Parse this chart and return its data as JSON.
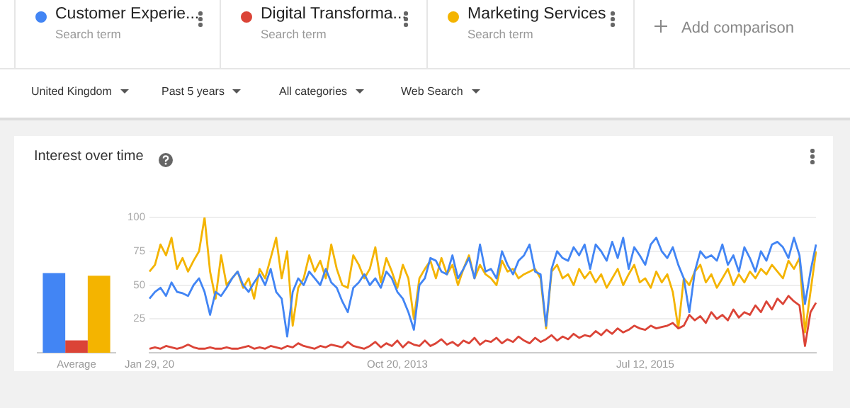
{
  "chart_data": [
    {
      "type": "bar",
      "title": "Interest over time",
      "categories": [
        "Average"
      ],
      "ylim": [
        0,
        100
      ],
      "tick_labels": "x",
      "series": [
        {
          "color": "#4285f4",
          "values": [
            58
          ]
        },
        {
          "color": "#db4437",
          "values": [
            9
          ]
        },
        {
          "color": "#f4b400",
          "values": [
            56
          ]
        }
      ]
    },
    {
      "type": "line",
      "legend": "top",
      "grid": "y",
      "categories": [
        "Jan 29, 20",
        null,
        null,
        null,
        null,
        null,
        null,
        null,
        null,
        null,
        null,
        null,
        null,
        null,
        null,
        null,
        null,
        null,
        null,
        null,
        null,
        null,
        null,
        null,
        null,
        null,
        null,
        null,
        null,
        null,
        null,
        null,
        null,
        null,
        null,
        null,
        null,
        null,
        null,
        null,
        null,
        null,
        null,
        null,
        null,
        "Oct 20, 2013",
        null,
        null,
        null,
        null,
        null,
        null,
        null,
        null,
        null,
        null,
        null,
        null,
        null,
        null,
        null,
        null,
        null,
        null,
        null,
        null,
        null,
        null,
        null,
        null,
        null,
        null,
        null,
        null,
        null,
        null,
        null,
        null,
        null,
        null,
        null,
        null,
        null,
        null,
        null,
        null,
        null,
        null,
        null,
        null,
        "Jul 12, 2015",
        null,
        null,
        null,
        null,
        null,
        null,
        null,
        null,
        null,
        null,
        null,
        null,
        null,
        null,
        null,
        null,
        null,
        null,
        null,
        null,
        null,
        null,
        null,
        null,
        null,
        null,
        null,
        null,
        null,
        null,
        null
      ],
      "ylim": [
        0,
        100
      ],
      "yticks": [
        25,
        50,
        75,
        100
      ],
      "series": [
        {
          "name": "Customer Experie...",
          "color": "#4285f4",
          "values": [
            40,
            45,
            48,
            42,
            52,
            45,
            44,
            42,
            50,
            55,
            45,
            28,
            45,
            42,
            48,
            55,
            60,
            50,
            45,
            52,
            58,
            50,
            62,
            45,
            40,
            12,
            45,
            55,
            50,
            60,
            55,
            50,
            62,
            52,
            48,
            38,
            30,
            48,
            52,
            58,
            50,
            55,
            48,
            60,
            55,
            45,
            40,
            30,
            17,
            50,
            55,
            70,
            68,
            60,
            58,
            72,
            55,
            62,
            70,
            55,
            80,
            60,
            62,
            55,
            75,
            65,
            58,
            68,
            72,
            80,
            60,
            58,
            20,
            62,
            75,
            70,
            68,
            78,
            72,
            80,
            62,
            80,
            75,
            68,
            82,
            70,
            85,
            62,
            78,
            72,
            65,
            80,
            85,
            75,
            70,
            78,
            65,
            55,
            30,
            60,
            75,
            70,
            72,
            68,
            80,
            65,
            72,
            60,
            78,
            70,
            60,
            75,
            68,
            80,
            82,
            78,
            70,
            85,
            72,
            36,
            60,
            80
          ]
        },
        {
          "name": "Digital Transforma...",
          "color": "#db4437",
          "values": [
            3,
            4,
            3,
            5,
            4,
            3,
            4,
            6,
            4,
            3,
            3,
            4,
            3,
            3,
            4,
            3,
            3,
            4,
            5,
            3,
            4,
            3,
            5,
            4,
            3,
            5,
            4,
            7,
            5,
            4,
            3,
            5,
            4,
            6,
            5,
            4,
            8,
            5,
            4,
            3,
            5,
            8,
            4,
            7,
            5,
            9,
            4,
            8,
            6,
            5,
            9,
            5,
            7,
            10,
            6,
            8,
            5,
            9,
            7,
            11,
            6,
            9,
            8,
            11,
            7,
            10,
            8,
            12,
            9,
            7,
            11,
            8,
            10,
            13,
            9,
            12,
            10,
            14,
            11,
            13,
            12,
            16,
            13,
            17,
            14,
            18,
            15,
            17,
            20,
            18,
            17,
            20,
            18,
            19,
            20,
            22,
            18,
            20,
            28,
            24,
            27,
            22,
            30,
            25,
            28,
            24,
            32,
            26,
            30,
            28,
            35,
            30,
            38,
            32,
            40,
            36,
            42,
            38,
            35,
            5,
            30,
            37
          ]
        },
        {
          "name": "Marketing Services",
          "color": "#f4b400",
          "values": [
            60,
            65,
            80,
            72,
            85,
            62,
            70,
            60,
            68,
            75,
            100,
            60,
            40,
            72,
            50,
            55,
            60,
            48,
            55,
            40,
            62,
            55,
            70,
            85,
            55,
            75,
            20,
            48,
            55,
            72,
            60,
            68,
            55,
            80,
            62,
            50,
            48,
            72,
            65,
            55,
            62,
            78,
            52,
            70,
            60,
            48,
            65,
            55,
            25,
            55,
            62,
            68,
            55,
            70,
            58,
            65,
            50,
            62,
            72,
            55,
            65,
            58,
            55,
            50,
            68,
            60,
            62,
            55,
            58,
            60,
            62,
            55,
            18,
            60,
            65,
            55,
            58,
            50,
            62,
            55,
            60,
            52,
            58,
            48,
            55,
            62,
            50,
            58,
            65,
            52,
            55,
            48,
            60,
            52,
            58,
            45,
            18,
            55,
            50,
            60,
            65,
            52,
            58,
            48,
            55,
            62,
            50,
            58,
            52,
            60,
            55,
            62,
            58,
            65,
            60,
            55,
            68,
            62,
            70,
            15,
            45,
            75
          ]
        }
      ],
      "annotations": [
        "Search term",
        "Search term",
        "Search term",
        "Add comparison",
        "United Kingdom",
        "Past 5 years",
        "All categories",
        "Web Search"
      ]
    }
  ]
}
